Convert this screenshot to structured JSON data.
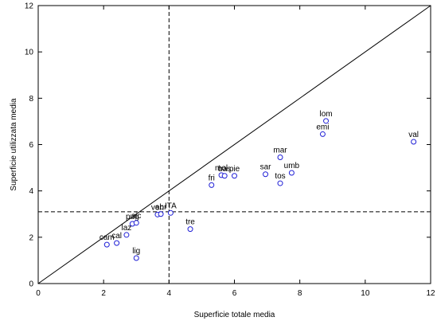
{
  "chart_data": {
    "type": "scatter",
    "title": "",
    "xlabel": "Superficie totale media",
    "ylabel": "Superficie utilizzata media",
    "xlim": [
      0,
      12
    ],
    "ylim": [
      0,
      12
    ],
    "x_ticks": [
      "0",
      "2",
      "4",
      "6",
      "8",
      "10",
      "12"
    ],
    "y_ticks": [
      "0",
      "2",
      "4",
      "6",
      "8",
      "10",
      "12"
    ],
    "grid": false,
    "marker_color": "#1f1fd6",
    "reference_lines": {
      "diagonal": "y = x",
      "vertical_x": 4.0,
      "horizontal_y": 3.1
    },
    "points": [
      {
        "label": "val",
        "x": 11.48,
        "y": 6.12
      },
      {
        "label": "lom",
        "x": 8.8,
        "y": 7.02
      },
      {
        "label": "emi",
        "x": 8.7,
        "y": 6.45
      },
      {
        "label": "mar",
        "x": 7.4,
        "y": 5.45
      },
      {
        "label": "umb",
        "x": 7.75,
        "y": 4.78
      },
      {
        "label": "sar",
        "x": 6.95,
        "y": 4.72
      },
      {
        "label": "tos",
        "x": 7.4,
        "y": 4.33
      },
      {
        "label": "mol",
        "x": 5.6,
        "y": 4.68
      },
      {
        "label": "bas",
        "x": 5.7,
        "y": 4.65
      },
      {
        "label": "pie",
        "x": 6.0,
        "y": 4.65
      },
      {
        "label": "fri",
        "x": 5.3,
        "y": 4.25
      },
      {
        "label": "tre",
        "x": 4.65,
        "y": 2.35
      },
      {
        "label": "ven",
        "x": 3.65,
        "y": 2.98
      },
      {
        "label": "abr",
        "x": 3.75,
        "y": 3.0
      },
      {
        "label": "ITA",
        "x": 4.05,
        "y": 3.05
      },
      {
        "label": "pug",
        "x": 2.88,
        "y": 2.58
      },
      {
        "label": "sic",
        "x": 3.0,
        "y": 2.62
      },
      {
        "label": "laz",
        "x": 2.7,
        "y": 2.1
      },
      {
        "label": "cam",
        "x": 2.1,
        "y": 1.68
      },
      {
        "label": "cal",
        "x": 2.4,
        "y": 1.75
      },
      {
        "label": "lig",
        "x": 3.0,
        "y": 1.1
      }
    ]
  }
}
